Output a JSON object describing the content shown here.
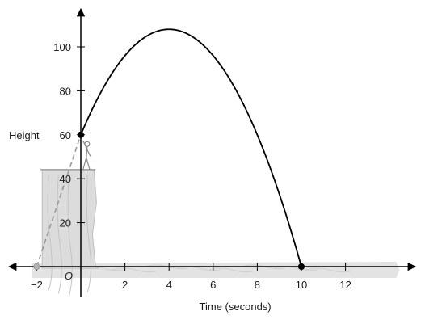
{
  "chart_data": {
    "type": "line",
    "title": "",
    "xlabel": "Time (seconds)",
    "ylabel": "Height",
    "origin_label": "O",
    "xlim": [
      -2.4,
      15
    ],
    "ylim": [
      -6,
      116
    ],
    "x_ticks": [
      -2,
      2,
      4,
      6,
      8,
      10,
      12
    ],
    "x_tick_labels": [
      "−2",
      "2",
      "4",
      "6",
      "8",
      "10",
      "12"
    ],
    "y_ticks": [
      20,
      40,
      60,
      80,
      100
    ],
    "y_tick_labels": [
      "20",
      "40",
      "60",
      "80",
      "100"
    ],
    "grid": false,
    "series": [
      {
        "equation": "h = -3(t - 4)^2 + 108",
        "x_range": [
          0,
          10
        ],
        "vertex": [
          4,
          108
        ],
        "points": [
          [
            0,
            60
          ],
          [
            2,
            96
          ],
          [
            4,
            108
          ],
          [
            6,
            96
          ],
          [
            8,
            60
          ],
          [
            10,
            0
          ]
        ],
        "color": "#000000"
      }
    ],
    "extension": {
      "from": [
        -2,
        0
      ],
      "to": [
        0,
        60
      ],
      "style": "dashed",
      "color": "#999999"
    },
    "marked_points": [
      {
        "x": 0,
        "y": 60,
        "fill": "#000000"
      },
      {
        "x": 10,
        "y": 0,
        "fill": "#000000"
      },
      {
        "x": -2,
        "y": 0,
        "fill": "#b0b0b0"
      }
    ],
    "illustration": {
      "cliff_top_height": 44,
      "cliff_right_x": 0.6,
      "ground_end_x": 14.3,
      "cliff_color": "#dcdcdc"
    }
  }
}
